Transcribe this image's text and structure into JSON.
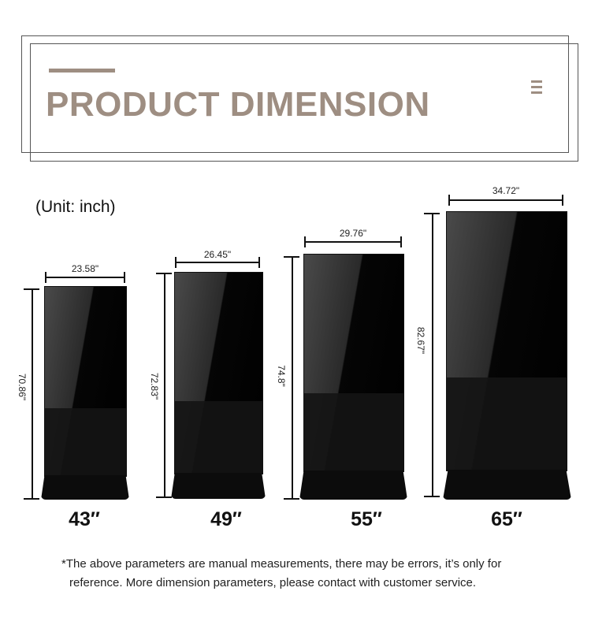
{
  "header": {
    "title": "PRODUCT DIMENSION",
    "accent_color": "#9e8e82",
    "icon": "menu-icon"
  },
  "unit_label": "(Unit: inch)",
  "models": [
    {
      "size": "43″",
      "width": "23.58\"",
      "height": "70.86\""
    },
    {
      "size": "49″",
      "width": "26.45\"",
      "height": "72.83\""
    },
    {
      "size": "55″",
      "width": "29.76\"",
      "height": "74.8\""
    },
    {
      "size": "65″",
      "width": "34.72\"",
      "height": "82.67\""
    }
  ],
  "note": {
    "line1": "*The above parameters are manual measurements, there may be errors, it’s only for",
    "line2": "reference.  More dimension parameters, please contact with customer service."
  }
}
